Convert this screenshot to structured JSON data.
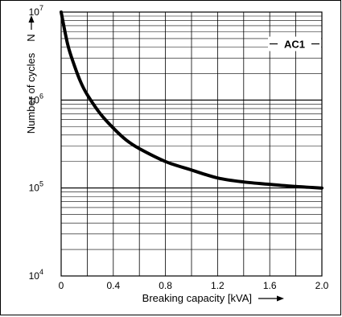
{
  "chart_data": {
    "type": "line",
    "title": "",
    "xlabel": "Breaking capacity [kVA]",
    "ylabel": "Number of cycles",
    "y_symbol": "N",
    "xlim": [
      0,
      2.0
    ],
    "ylim": [
      10000,
      10000000
    ],
    "y_scale": "log",
    "grid": true,
    "x_ticks": [
      "0",
      "0.4",
      "0.8",
      "1.2",
      "1.6",
      "2.0"
    ],
    "x_tick_values": [
      0,
      0.4,
      0.8,
      1.2,
      1.6,
      2.0
    ],
    "y_ticks": [
      {
        "base": "10",
        "exp": "4",
        "value": 10000
      },
      {
        "base": "10",
        "exp": "5",
        "value": 100000
      },
      {
        "base": "10",
        "exp": "6",
        "value": 1000000
      },
      {
        "base": "10",
        "exp": "7",
        "value": 10000000
      }
    ],
    "series": [
      {
        "name": "AC1",
        "x": [
          0.0,
          0.05,
          0.1,
          0.15,
          0.2,
          0.3,
          0.4,
          0.5,
          0.6,
          0.8,
          1.0,
          1.2,
          1.4,
          1.6,
          1.8,
          2.0
        ],
        "y": [
          10000000,
          4300000,
          2500000,
          1600000,
          1150000,
          700000,
          480000,
          350000,
          280000,
          200000,
          160000,
          130000,
          117000,
          110000,
          104000,
          100000
        ]
      }
    ]
  }
}
